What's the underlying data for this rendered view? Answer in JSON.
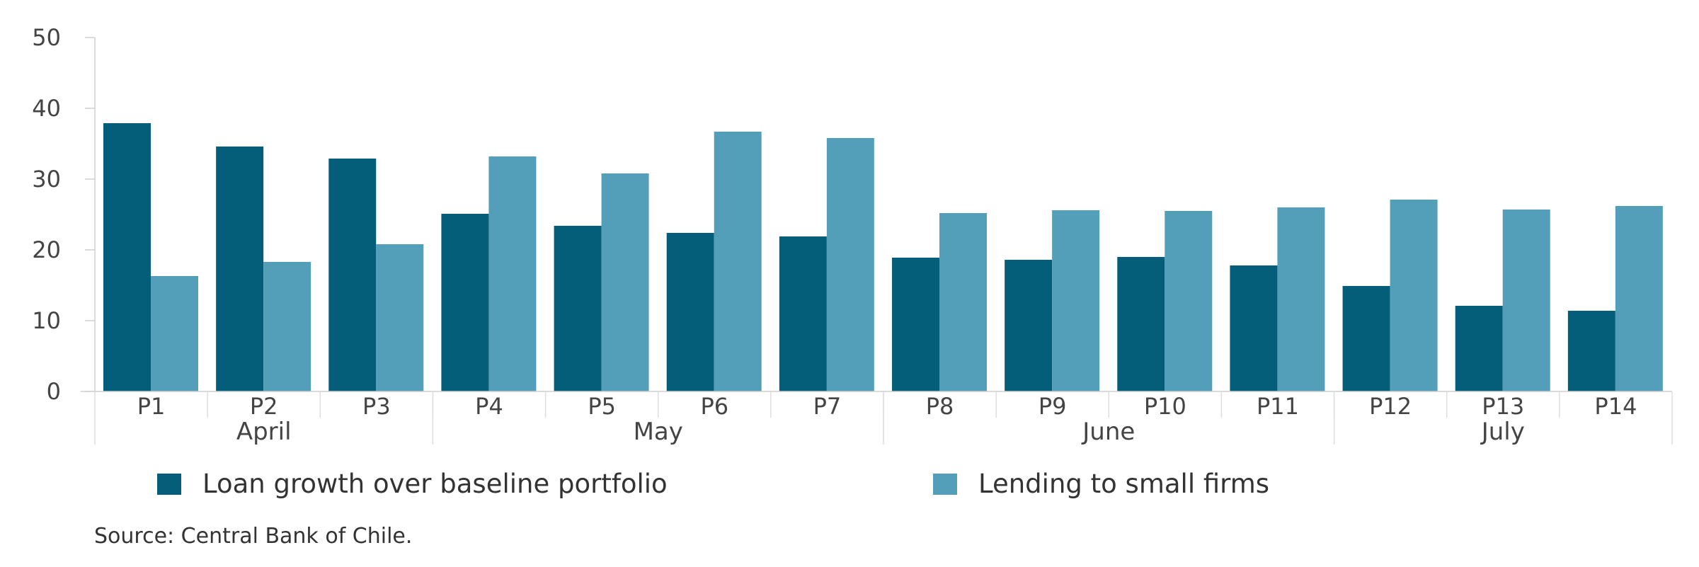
{
  "chart_data": {
    "type": "bar",
    "categories": [
      "P1",
      "P2",
      "P3",
      "P4",
      "P5",
      "P6",
      "P7",
      "P8",
      "P9",
      "P10",
      "P11",
      "P12",
      "P13",
      "P14"
    ],
    "groups": [
      {
        "label": "April",
        "count": 3
      },
      {
        "label": "May",
        "count": 4
      },
      {
        "label": "June",
        "count": 4
      },
      {
        "label": "July",
        "count": 3
      }
    ],
    "series": [
      {
        "name": "Loan growth over baseline portfolio",
        "color": "#045e7a",
        "values": [
          37.9,
          34.6,
          32.9,
          25.1,
          23.4,
          22.4,
          21.9,
          18.9,
          18.6,
          19.0,
          17.8,
          14.9,
          12.1,
          11.4
        ]
      },
      {
        "name": "Lending to small firms",
        "color": "#539eb8",
        "values": [
          16.3,
          18.3,
          20.8,
          33.2,
          30.8,
          36.7,
          35.8,
          25.2,
          25.6,
          25.5,
          26.0,
          27.1,
          25.7,
          26.2
        ]
      }
    ],
    "ylim": [
      0,
      50
    ],
    "yticks": [
      0,
      10,
      20,
      30,
      40,
      50
    ],
    "grid": false,
    "legend": "bottom"
  },
  "source": "Source: Central Bank of Chile."
}
